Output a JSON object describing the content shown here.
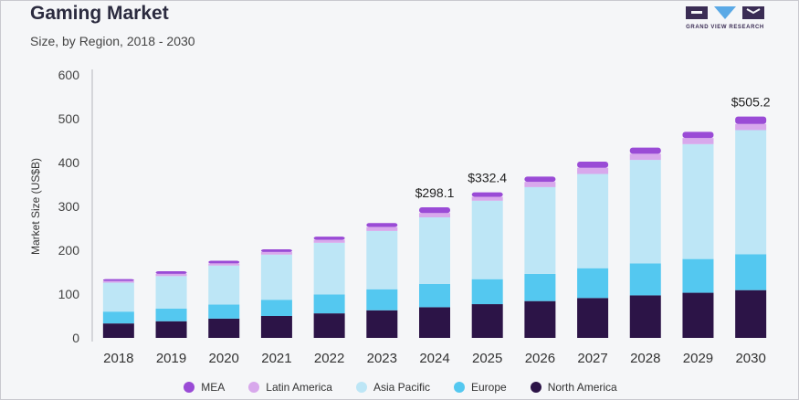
{
  "header": {
    "title": "Gaming Market",
    "subtitle": "Size, by Region, 2018 - 2030"
  },
  "logo": {
    "text": "GRAND VIEW RESEARCH",
    "color": "#3a2c54",
    "accent": "#5aa9e6"
  },
  "chart_data": {
    "type": "bar",
    "stacked": true,
    "categories": [
      "2018",
      "2019",
      "2020",
      "2021",
      "2022",
      "2023",
      "2024",
      "2025",
      "2026",
      "2027",
      "2028",
      "2029",
      "2030"
    ],
    "ylabel": "Market Size (US$B)",
    "ylim": [
      0,
      600
    ],
    "yticks": [
      0,
      100,
      200,
      300,
      400,
      500,
      600
    ],
    "grid": false,
    "legend_position": "bottom",
    "series": [
      {
        "name": "North America",
        "color": "#2c1447",
        "values": [
          33,
          38,
          44,
          50,
          56,
          63,
          70,
          77,
          84,
          91,
          97,
          103,
          109
        ]
      },
      {
        "name": "Europe",
        "color": "#54c8f0",
        "values": [
          27,
          29,
          32,
          37,
          43,
          48,
          53,
          57,
          62,
          68,
          73,
          77,
          82
        ]
      },
      {
        "name": "Asia Pacific",
        "color": "#bde6f6",
        "values": [
          66,
          74,
          89,
          103,
          118,
          133,
          152,
          179,
          198,
          215,
          236,
          262,
          283
        ]
      },
      {
        "name": "Latin America",
        "color": "#d8a8ec",
        "values": [
          4,
          5,
          5,
          6,
          7,
          9,
          10,
          9,
          12,
          14,
          14,
          14,
          14
        ]
      },
      {
        "name": "MEA",
        "color": "#9a4bd6",
        "values": [
          4,
          6,
          6,
          6,
          7,
          9,
          13,
          10,
          12,
          14,
          14,
          14,
          17
        ]
      }
    ],
    "legend_order": [
      "MEA",
      "Latin America",
      "Asia Pacific",
      "Europe",
      "North America"
    ],
    "annotations": [
      {
        "category": "2024",
        "label": "$298.1"
      },
      {
        "category": "2025",
        "label": "$332.4"
      },
      {
        "category": "2030",
        "label": "$505.2"
      }
    ]
  }
}
